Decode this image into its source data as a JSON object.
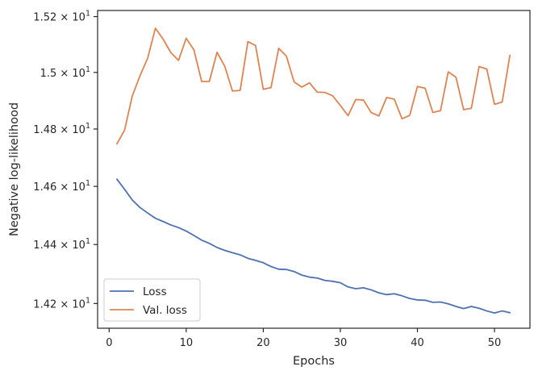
{
  "chart_data": {
    "type": "line",
    "xlabel": "Epochs",
    "ylabel": "Negative log-likelihood",
    "xlim": [
      -1.5,
      54.6
    ],
    "ylim": [
      14.117,
      15.222
    ],
    "x_ticks": [
      0,
      10,
      20,
      30,
      40,
      50
    ],
    "y_ticks": [
      {
        "value": 15.2,
        "base": "1.52",
        "exp": "1"
      },
      {
        "value": 15.0,
        "base": "1.5",
        "exp": "1"
      },
      {
        "value": 14.8,
        "base": "1.48",
        "exp": "1"
      },
      {
        "value": 14.6,
        "base": "1.46",
        "exp": "1"
      },
      {
        "value": 14.4,
        "base": "1.44",
        "exp": "1"
      },
      {
        "value": 14.2,
        "base": "1.42",
        "exp": "1"
      }
    ],
    "y_scale": "log",
    "grid": false,
    "legend_position": "lower-left",
    "x": [
      1,
      2,
      3,
      4,
      5,
      6,
      7,
      8,
      9,
      10,
      11,
      12,
      13,
      14,
      15,
      16,
      17,
      18,
      19,
      20,
      21,
      22,
      23,
      24,
      25,
      26,
      27,
      28,
      29,
      30,
      31,
      32,
      33,
      34,
      35,
      36,
      37,
      38,
      39,
      40,
      41,
      42,
      43,
      44,
      45,
      46,
      47,
      48,
      49,
      50,
      51,
      52
    ],
    "series": [
      {
        "name": "Loss",
        "color": "#4c72b0",
        "values": [
          14.625,
          14.59,
          14.553,
          14.527,
          14.508,
          14.49,
          14.479,
          14.467,
          14.458,
          14.446,
          14.431,
          14.415,
          14.404,
          14.39,
          14.38,
          14.372,
          14.365,
          14.353,
          14.346,
          14.338,
          14.325,
          14.316,
          14.315,
          14.308,
          14.296,
          14.289,
          14.286,
          14.278,
          14.275,
          14.27,
          14.256,
          14.25,
          14.253,
          14.246,
          14.236,
          14.23,
          14.233,
          14.226,
          14.217,
          14.212,
          14.211,
          14.204,
          14.205,
          14.199,
          14.19,
          14.183,
          14.19,
          14.184,
          14.175,
          14.168,
          14.175,
          14.169
        ]
      },
      {
        "name": "Val. loss",
        "color": "#dd8452",
        "values": [
          14.748,
          14.796,
          14.916,
          14.988,
          15.051,
          15.158,
          15.119,
          15.071,
          15.043,
          15.122,
          15.08,
          14.968,
          14.968,
          15.072,
          15.022,
          14.934,
          14.936,
          15.11,
          15.096,
          14.94,
          14.946,
          15.086,
          15.058,
          14.966,
          14.948,
          14.963,
          14.93,
          14.929,
          14.917,
          14.883,
          14.847,
          14.904,
          14.902,
          14.858,
          14.846,
          14.911,
          14.905,
          14.836,
          14.848,
          14.95,
          14.944,
          14.858,
          14.865,
          15.002,
          14.983,
          14.868,
          14.873,
          15.021,
          15.012,
          14.887,
          14.895,
          15.061
        ]
      }
    ]
  }
}
